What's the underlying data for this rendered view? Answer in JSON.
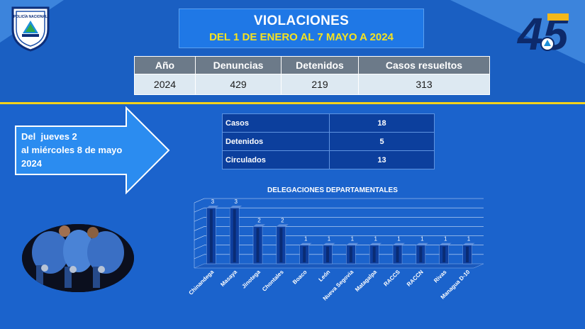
{
  "title": "VIOLACIONES",
  "subtitle": "DEL 1 DE ENERO AL 7 MAYO A 2024",
  "badge_text": "POLICÍA NACIONAL",
  "logo_number": "45",
  "summary": {
    "headers": [
      "Año",
      "Denuncias",
      "Detenidos",
      "Casos resueltos"
    ],
    "row": [
      "2024",
      "429",
      "219",
      "313"
    ]
  },
  "period": {
    "line1": "Del  jueves 2",
    "line2": "al miércoles 8 de mayo",
    "line3": "2024"
  },
  "stats": [
    {
      "label": "Casos",
      "value": "18"
    },
    {
      "label": "Detenidos",
      "value": "5"
    },
    {
      "label": "Circulados",
      "value": "13"
    }
  ],
  "colors": {
    "accent": "#f3d21a",
    "background": "#1560c6",
    "table_header": "#6c7a89"
  },
  "chart_data": {
    "type": "bar",
    "title": "DELEGACIONES DEPARTAMENTALES",
    "categories": [
      "Chinandega",
      "Masaya",
      "Jinotega",
      "Chontales",
      "Boaco",
      "León",
      "Nueva Segovia",
      "Matagalpa",
      "RACCS",
      "RACCN",
      "Rivas",
      "Managua D-10"
    ],
    "values": [
      3,
      3,
      2,
      2,
      1,
      1,
      1,
      1,
      1,
      1,
      1,
      1
    ],
    "ylim": [
      0,
      3.5
    ],
    "grid": true
  }
}
